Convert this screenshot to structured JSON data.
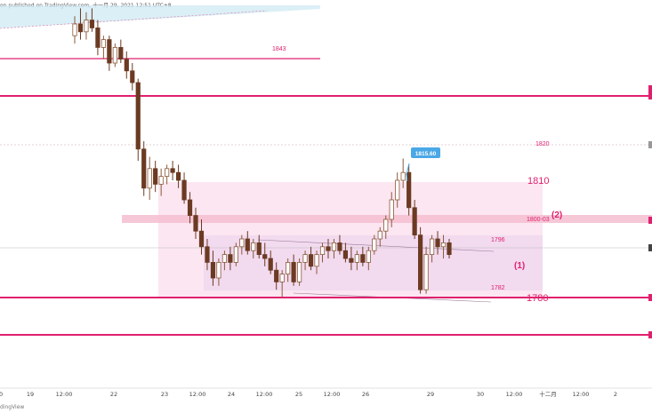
{
  "header": {
    "text": "on published on TradingView.com, 十一月 29, 2021 12:51 UTC+8"
  },
  "footer": {
    "brand": "dingView"
  },
  "colors": {
    "up": "#8b5a3a",
    "down": "#6b3a22",
    "magenta": "#e0206e",
    "label": "#e0206e",
    "zone_light": "#fbe6f1",
    "zone_mid": "#f1d8ee",
    "band": "#f4bdd0",
    "top_zone": "#cfe9f3",
    "tooltip": "#4aa8e6"
  },
  "chart_data": {
    "type": "candlestick",
    "x_labels": [
      "0",
      "19",
      "12:00",
      "22",
      "23",
      "12:00",
      "24",
      "12:00",
      "25",
      "12:00",
      "26",
      "29",
      "30",
      "12:00",
      "十二月",
      "12:00",
      "2"
    ],
    "y_range": [
      1762,
      1852
    ],
    "annotations": {
      "level_1843": "1843",
      "level_1820": "1820",
      "level_1810": "1810",
      "level_1800": "1800-03",
      "marker_2": "(2)",
      "level_1796": "1796",
      "marker_1": "(1)",
      "level_1782": "1782",
      "level_1780": "1780",
      "peak": "1815.60"
    },
    "levels": [
      1850,
      1843,
      1832,
      1780,
      1772
    ],
    "candles": [
      [
        1847,
        1852,
        1845,
        1850
      ],
      [
        1850,
        1854,
        1846,
        1848
      ],
      [
        1848,
        1853,
        1846,
        1851
      ],
      [
        1851,
        1854,
        1848,
        1849
      ],
      [
        1849,
        1851,
        1842,
        1844
      ],
      [
        1844,
        1847,
        1841,
        1846
      ],
      [
        1846,
        1847,
        1838,
        1840
      ],
      [
        1840,
        1845,
        1839,
        1844
      ],
      [
        1844,
        1846,
        1840,
        1841
      ],
      [
        1841,
        1843,
        1836,
        1838
      ],
      [
        1838,
        1840,
        1833,
        1835
      ],
      [
        1835,
        1836,
        1815,
        1818
      ],
      [
        1818,
        1820,
        1806,
        1808
      ],
      [
        1808,
        1816,
        1805,
        1813
      ],
      [
        1813,
        1815,
        1807,
        1809
      ],
      [
        1809,
        1813,
        1806,
        1811
      ],
      [
        1811,
        1814,
        1809,
        1813
      ],
      [
        1813,
        1815,
        1810,
        1812
      ],
      [
        1812,
        1814,
        1808,
        1810
      ],
      [
        1810,
        1812,
        1804,
        1805
      ],
      [
        1805,
        1807,
        1799,
        1801
      ],
      [
        1801,
        1803,
        1795,
        1797
      ],
      [
        1797,
        1800,
        1791,
        1793
      ],
      [
        1793,
        1795,
        1787,
        1789
      ],
      [
        1789,
        1792,
        1783,
        1785
      ],
      [
        1785,
        1790,
        1783,
        1789
      ],
      [
        1789,
        1792,
        1787,
        1791
      ],
      [
        1791,
        1793,
        1787,
        1789
      ],
      [
        1789,
        1794,
        1788,
        1793
      ],
      [
        1793,
        1796,
        1791,
        1795
      ],
      [
        1795,
        1797,
        1791,
        1792
      ],
      [
        1792,
        1795,
        1790,
        1794
      ],
      [
        1794,
        1796,
        1790,
        1791
      ],
      [
        1791,
        1794,
        1788,
        1790
      ],
      [
        1790,
        1792,
        1786,
        1787
      ],
      [
        1787,
        1789,
        1782,
        1784
      ],
      [
        1784,
        1787,
        1780,
        1786
      ],
      [
        1786,
        1790,
        1784,
        1789
      ],
      [
        1789,
        1791,
        1783,
        1784
      ],
      [
        1784,
        1790,
        1783,
        1789
      ],
      [
        1789,
        1792,
        1787,
        1791
      ],
      [
        1791,
        1793,
        1787,
        1788
      ],
      [
        1788,
        1792,
        1786,
        1791
      ],
      [
        1791,
        1794,
        1789,
        1793
      ],
      [
        1793,
        1795,
        1790,
        1792
      ],
      [
        1792,
        1795,
        1790,
        1794
      ],
      [
        1794,
        1796,
        1791,
        1792
      ],
      [
        1792,
        1794,
        1789,
        1790
      ],
      [
        1790,
        1793,
        1787,
        1789
      ],
      [
        1789,
        1792,
        1787,
        1791
      ],
      [
        1791,
        1793,
        1788,
        1789
      ],
      [
        1789,
        1793,
        1787,
        1792
      ],
      [
        1792,
        1796,
        1791,
        1795
      ],
      [
        1795,
        1798,
        1793,
        1797
      ],
      [
        1797,
        1801,
        1795,
        1800
      ],
      [
        1800,
        1807,
        1798,
        1805
      ],
      [
        1805,
        1812,
        1803,
        1810
      ],
      [
        1810,
        1815.6,
        1808,
        1812
      ],
      [
        1812,
        1814,
        1801,
        1803
      ],
      [
        1803,
        1805,
        1795,
        1796
      ],
      [
        1796,
        1798,
        1781,
        1782
      ],
      [
        1782,
        1793,
        1781,
        1791
      ],
      [
        1791,
        1796,
        1789,
        1795
      ],
      [
        1795,
        1797,
        1791,
        1793
      ],
      [
        1793,
        1796,
        1790,
        1794
      ],
      [
        1794,
        1795,
        1790,
        1791
      ]
    ]
  }
}
